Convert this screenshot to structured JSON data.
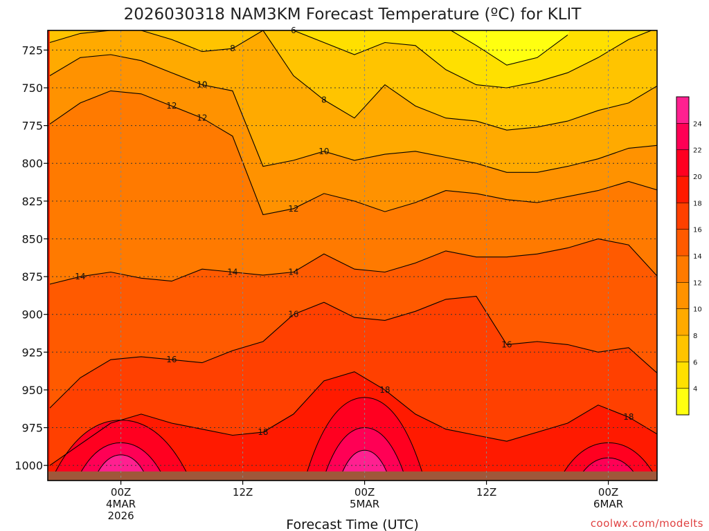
{
  "chart_data": {
    "type": "heatmap",
    "title": "2026030318 NAM3KM Forecast Temperature (ºC) for KLIT",
    "xlabel": "Forecast Time (UTC)",
    "ylabel": "",
    "credit": "coolwx.com/modelts",
    "y_axis": {
      "unit": "hPa",
      "inverted": true,
      "range": [
        1010,
        712
      ],
      "ticks": [
        725,
        750,
        775,
        800,
        825,
        850,
        875,
        900,
        925,
        950,
        975,
        1000
      ],
      "tick_labels": [
        "725",
        "750",
        "775",
        "800",
        "825",
        "850",
        "875",
        "900",
        "925",
        "950",
        "975",
        "1000"
      ]
    },
    "x_axis": {
      "unit": "hours from 2026-03-04 00Z",
      "range": [
        -7.2,
        52.8
      ],
      "ticks": [
        {
          "hour": 0,
          "lines": [
            "00Z",
            "4MAR",
            "2026"
          ]
        },
        {
          "hour": 12,
          "lines": [
            "12Z"
          ]
        },
        {
          "hour": 24,
          "lines": [
            "00Z",
            "5MAR"
          ]
        },
        {
          "hour": 36,
          "lines": [
            "12Z"
          ]
        },
        {
          "hour": 48,
          "lines": [
            "00Z",
            "6MAR"
          ]
        }
      ]
    },
    "grid": true,
    "ground_below_hPa": 1004,
    "colorbar": {
      "placement": "right",
      "levels": [
        2,
        4,
        6,
        8,
        10,
        12,
        14,
        16,
        18,
        20,
        22,
        24,
        26
      ],
      "tick_labels": [
        "4",
        "6",
        "8",
        "10",
        "12",
        "14",
        "16",
        "18",
        "20",
        "22",
        "24"
      ],
      "colors": [
        "#ffff10",
        "#ffe000",
        "#ffc400",
        "#ffaa00",
        "#ff9200",
        "#ff7a00",
        "#ff5a00",
        "#ff4000",
        "#ff1a00",
        "#ff0020",
        "#ff0055",
        "#ff2090"
      ]
    },
    "hours": [
      -7,
      -4,
      -1,
      2,
      5,
      8,
      11,
      14,
      17,
      20,
      23,
      26,
      29,
      32,
      35,
      38,
      41,
      44,
      47,
      50,
      53
    ],
    "isotherms": [
      {
        "value": 4,
        "pressure_hPa": [
          null,
          null,
          null,
          null,
          null,
          null,
          null,
          null,
          null,
          null,
          null,
          null,
          null,
          710,
          722,
          735,
          730,
          715,
          null,
          null,
          null
        ]
      },
      {
        "value": 6,
        "pressure_hPa": [
          null,
          null,
          null,
          null,
          null,
          null,
          null,
          null,
          712,
          720,
          728,
          720,
          722,
          738,
          748,
          750,
          746,
          740,
          730,
          718,
          710
        ]
      },
      {
        "value": 8,
        "pressure_hPa": [
          720,
          714,
          712,
          712,
          718,
          726,
          724,
          712,
          742,
          758,
          770,
          748,
          762,
          770,
          772,
          778,
          776,
          772,
          765,
          760,
          748
        ]
      },
      {
        "value": 10,
        "pressure_hPa": [
          742,
          730,
          728,
          732,
          740,
          748,
          752,
          802,
          798,
          792,
          798,
          794,
          792,
          796,
          800,
          806,
          806,
          802,
          797,
          790,
          788
        ]
      },
      {
        "value": 12,
        "pressure_hPa": [
          774,
          760,
          752,
          754,
          762,
          770,
          782,
          834,
          830,
          820,
          825,
          832,
          826,
          818,
          820,
          824,
          826,
          822,
          818,
          812,
          818
        ]
      },
      {
        "value": 14,
        "pressure_hPa": [
          880,
          875,
          872,
          876,
          878,
          870,
          872,
          874,
          872,
          860,
          870,
          872,
          866,
          858,
          862,
          862,
          860,
          856,
          850,
          854,
          876
        ]
      },
      {
        "value": 16,
        "pressure_hPa": [
          962,
          942,
          930,
          928,
          930,
          932,
          924,
          918,
          900,
          892,
          902,
          904,
          898,
          890,
          888,
          920,
          918,
          920,
          925,
          922,
          940
        ]
      },
      {
        "value": 18,
        "pressure_hPa": [
          1000,
          986,
          972,
          966,
          972,
          976,
          980,
          978,
          966,
          944,
          938,
          950,
          966,
          976,
          980,
          984,
          978,
          972,
          960,
          968,
          980
        ]
      }
    ]
  }
}
